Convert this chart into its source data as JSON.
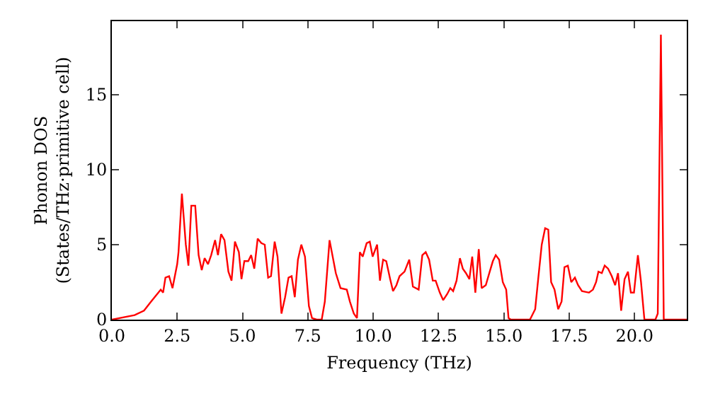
{
  "chart_data": {
    "type": "line",
    "xlabel": "Frequency (THz)",
    "ylabel": "Phonon DOS\n(States/THz·primitive cell)",
    "xlim": [
      0,
      22.0
    ],
    "ylim": [
      0,
      19.9
    ],
    "xticks": [
      {
        "value": 0,
        "label": "0.0"
      },
      {
        "value": 2.5,
        "label": "2.5"
      },
      {
        "value": 5,
        "label": "5.0"
      },
      {
        "value": 7.5,
        "label": "7.5"
      },
      {
        "value": 10,
        "label": "10.0"
      },
      {
        "value": 12.5,
        "label": "12.5"
      },
      {
        "value": 15,
        "label": "15.0"
      },
      {
        "value": 17.5,
        "label": "17.5"
      },
      {
        "value": 20,
        "label": "20.0"
      }
    ],
    "yticks": [
      0,
      5,
      10,
      15
    ],
    "grid": false,
    "marker": "none",
    "line_style": "solid",
    "series": [
      {
        "color": "#ff0000",
        "x": [
          0,
          0.87,
          1.23,
          1.5,
          1.78,
          1.87,
          1.96,
          2.05,
          2.19,
          2.32,
          2.5,
          2.55,
          2.68,
          2.83,
          2.93,
          3.04,
          3.19,
          3.32,
          3.44,
          3.55,
          3.68,
          3.8,
          3.95,
          4.06,
          4.18,
          4.31,
          4.46,
          4.58,
          4.71,
          4.86,
          4.96,
          5.07,
          5.22,
          5.33,
          5.45,
          5.58,
          5.72,
          5.85,
          5.98,
          6.09,
          6.23,
          6.34,
          6.49,
          6.63,
          6.76,
          6.88,
          7.0,
          7.12,
          7.25,
          7.39,
          7.54,
          7.66,
          7.84,
          8.03,
          8.15,
          8.33,
          8.57,
          8.75,
          8.99,
          9.11,
          9.26,
          9.38,
          9.49,
          9.6,
          9.75,
          9.87,
          9.98,
          10.15,
          10.26,
          10.38,
          10.5,
          10.65,
          10.76,
          10.89,
          11.01,
          11.2,
          11.38,
          11.52,
          11.74,
          11.88,
          12.01,
          12.14,
          12.28,
          12.39,
          12.55,
          12.68,
          12.83,
          12.95,
          13.06,
          13.19,
          13.32,
          13.43,
          13.55,
          13.68,
          13.79,
          13.91,
          14.04,
          14.15,
          14.31,
          14.46,
          14.58,
          14.69,
          14.82,
          14.96,
          15.09,
          15.18,
          15.27,
          16.0,
          16.2,
          16.32,
          16.45,
          16.58,
          16.7,
          16.81,
          16.94,
          17.08,
          17.21,
          17.32,
          17.45,
          17.58,
          17.72,
          17.84,
          17.99,
          18.26,
          18.41,
          18.53,
          18.62,
          18.75,
          18.86,
          18.99,
          19.13,
          19.26,
          19.37,
          19.49,
          19.62,
          19.75,
          19.86,
          19.98,
          20.13,
          20.25,
          20.38,
          20.8,
          20.89,
          21.01,
          21.12,
          22.0
        ],
        "values": [
          0,
          0.3,
          0.6,
          1.2,
          1.8,
          2.0,
          1.8,
          2.8,
          2.9,
          2.1,
          3.7,
          4.5,
          8.4,
          5.0,
          3.6,
          7.6,
          7.6,
          4.3,
          3.3,
          4.1,
          3.7,
          4.3,
          5.3,
          4.3,
          5.7,
          5.3,
          3.2,
          2.6,
          5.2,
          4.5,
          2.7,
          3.9,
          3.9,
          4.3,
          3.4,
          5.4,
          5.1,
          5.0,
          2.8,
          2.9,
          5.2,
          4.2,
          0.4,
          1.5,
          2.8,
          2.9,
          1.5,
          4.0,
          5.0,
          4.2,
          0.9,
          0.1,
          0,
          0,
          1.2,
          5.3,
          3.1,
          2.1,
          2.0,
          1.2,
          0.4,
          0.1,
          4.5,
          4.2,
          5.1,
          5.2,
          4.2,
          5.0,
          2.6,
          4.0,
          3.9,
          2.7,
          1.9,
          2.3,
          2.9,
          3.2,
          4.0,
          2.2,
          2.0,
          4.3,
          4.5,
          4.0,
          2.6,
          2.6,
          1.8,
          1.3,
          1.7,
          2.1,
          1.9,
          2.6,
          4.1,
          3.4,
          3.1,
          2.7,
          4.2,
          1.8,
          4.7,
          2.1,
          2.3,
          3.2,
          3.9,
          4.3,
          4.0,
          2.5,
          2.0,
          0.1,
          0,
          0,
          0.7,
          2.8,
          5.0,
          6.1,
          6.0,
          2.5,
          2.0,
          0.7,
          1.2,
          3.5,
          3.6,
          2.5,
          2.8,
          2.3,
          1.9,
          1.8,
          2.0,
          2.5,
          3.2,
          3.1,
          3.6,
          3.4,
          2.9,
          2.3,
          3.1,
          0.6,
          2.7,
          3.2,
          1.8,
          1.8,
          4.3,
          2.5,
          0,
          0,
          0.4,
          19.0,
          0,
          0
        ]
      }
    ]
  }
}
